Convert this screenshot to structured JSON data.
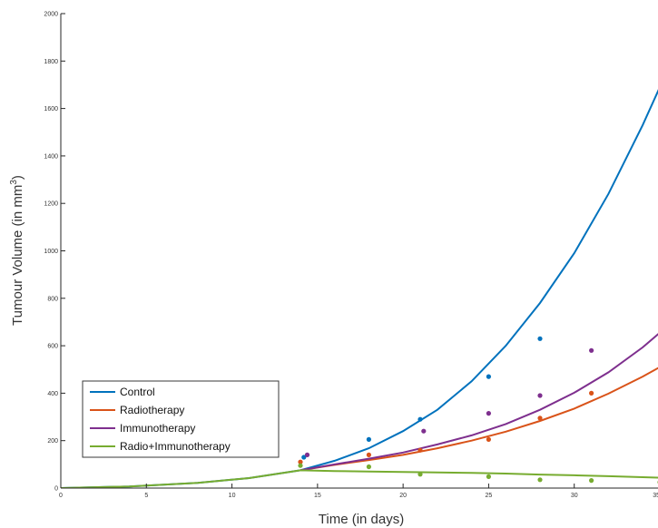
{
  "chart_data": {
    "type": "line",
    "title": "",
    "xlabel": "Time (in days)",
    "ylabel_main": "Tumour Volume (in mm",
    "ylabel_sup": "3",
    "ylabel_end": ")",
    "xlim": [
      0,
      35
    ],
    "ylim": [
      0,
      2000
    ],
    "xticks": [
      0,
      5,
      10,
      15,
      20,
      25,
      30,
      35
    ],
    "xtick_labels": [
      "0",
      "5",
      "10",
      "15",
      "20",
      "25",
      "30",
      "35"
    ],
    "yticks": [
      0,
      200,
      400,
      600,
      800,
      1000,
      1200,
      1400,
      1600,
      1800,
      2000
    ],
    "ytick_labels": [
      "0",
      "200",
      "400",
      "600",
      "800",
      "1000",
      "1200",
      "1400",
      "1600",
      "1800",
      "2000"
    ],
    "grid": false,
    "legend_position": "bottom-left",
    "series": [
      {
        "name": "Control",
        "color": "#0072BD",
        "line": {
          "x": [
            0,
            4,
            8,
            11,
            14,
            16,
            18,
            20,
            22,
            24,
            26,
            28,
            30,
            32,
            34,
            35
          ],
          "y": [
            0,
            7,
            22,
            42,
            75,
            115,
            168,
            240,
            330,
            450,
            600,
            780,
            990,
            1240,
            1530,
            1690
          ]
        },
        "points": {
          "x": [
            14.2,
            18,
            21,
            25,
            28
          ],
          "y": [
            130,
            205,
            290,
            470,
            630
          ]
        }
      },
      {
        "name": "Radiotherapy",
        "color": "#D95319",
        "line": {
          "x": [
            14,
            16,
            18,
            20,
            22,
            24,
            26,
            28,
            30,
            32,
            34,
            35
          ],
          "y": [
            75,
            98,
            118,
            140,
            168,
            200,
            238,
            283,
            335,
            398,
            470,
            510
          ]
        },
        "points": {
          "x": [
            14,
            18,
            21,
            25,
            28,
            31
          ],
          "y": [
            110,
            140,
            160,
            205,
            295,
            400
          ]
        }
      },
      {
        "name": "Immunotherapy",
        "color": "#7E2F8E",
        "line": {
          "x": [
            14,
            16,
            18,
            20,
            22,
            24,
            26,
            28,
            30,
            32,
            34,
            35
          ],
          "y": [
            75,
            100,
            124,
            150,
            184,
            222,
            270,
            330,
            402,
            488,
            593,
            655
          ]
        },
        "points": {
          "x": [
            14.4,
            21.2,
            25,
            28,
            31
          ],
          "y": [
            140,
            240,
            315,
            390,
            580
          ]
        }
      },
      {
        "name": "Radio+Immunotherapy",
        "color": "#77AC30",
        "line": {
          "x": [
            0,
            4,
            8,
            11,
            14,
            16,
            18,
            20,
            22,
            24,
            26,
            28,
            30,
            32,
            34,
            35
          ],
          "y": [
            0,
            7,
            22,
            42,
            75,
            72,
            70,
            68,
            66,
            64,
            61,
            57,
            54,
            50,
            46,
            44
          ]
        },
        "points": {
          "x": [
            14,
            18,
            21,
            25,
            28,
            31,
            35
          ],
          "y": [
            95,
            90,
            58,
            48,
            35,
            32,
            25
          ]
        }
      }
    ]
  }
}
